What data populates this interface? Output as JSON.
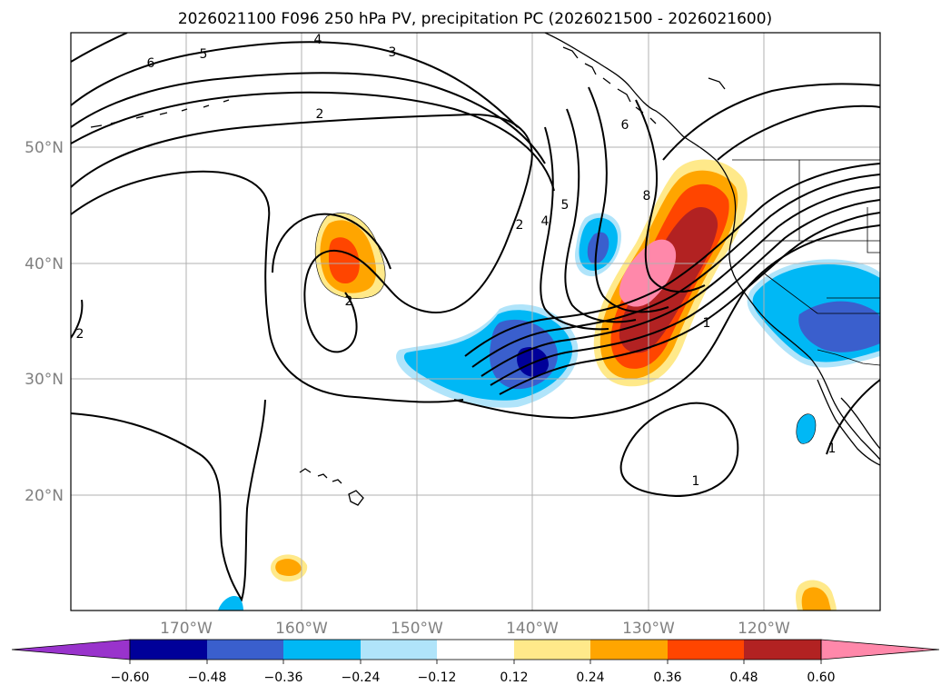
{
  "title": "2026021100 F096 250 hPa PV, precipitation PC (2026021500 - 2026021600)",
  "lat_labels": [
    "50°N",
    "40°N",
    "30°N",
    "20°N"
  ],
  "lon_labels": [
    "170°W",
    "160°W",
    "150°W",
    "140°W",
    "130°W",
    "120°W"
  ],
  "contour_labels": [
    "6",
    "5",
    "4",
    "3",
    "2",
    "2",
    "4",
    "5",
    "6",
    "8",
    "2",
    "1",
    "1",
    "1",
    "2"
  ],
  "colorbar": {
    "ticks": [
      "−0.60",
      "−0.48",
      "−0.36",
      "−0.24",
      "−0.12",
      "0.12",
      "0.24",
      "0.36",
      "0.48",
      "0.60"
    ],
    "colors": [
      "#9933cc",
      "#000099",
      "#3a5fcd",
      "#00b8f5",
      "#b0e4fa",
      "#ffffff",
      "#ffe98a",
      "#ffa500",
      "#ff4500",
      "#b22222",
      "#ff88aa"
    ]
  },
  "colors": {
    "neg_weak": "#00b8f5",
    "neg_mid": "#3a5fcd",
    "neg_strong": "#000099",
    "pos_weak": "#ffe98a",
    "pos_mid": "#ffa500",
    "pos_strong": "#ff4500",
    "pos_vstrong": "#b22222",
    "pos_max": "#ff88aa",
    "grid": "#b0b0b0"
  }
}
